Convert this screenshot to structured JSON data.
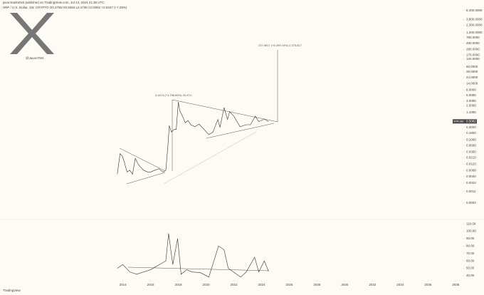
{
  "header": {
    "publisher": "javonmarks0x0 published on TradingView.com, Jul 13, 2024 21:38 UTC",
    "symbol": "XRP / U.S. Dollar, 1W, CRYPTO O0.4756 H0.5094 L0.4738 C0.5082 +0.0347 (+7.29%)"
  },
  "logo_handle": "@JavonTM1",
  "footer": "TradingView",
  "chart_data": [
    {
      "type": "line",
      "log_scale": true,
      "annotations": [
        "3.3474 (+3,798.85%) 33,474",
        "237.5817 (+6,394.15%) 2,375,817"
      ],
      "last_price": 0.5082,
      "x": [
        2013.6,
        2013.8,
        2013.95,
        2014.1,
        2014.3,
        2014.5,
        2014.7,
        2014.9,
        2015.1,
        2015.3,
        2015.5,
        2015.8,
        2016.0,
        2016.3,
        2016.6,
        2016.9,
        2017.1,
        2017.25,
        2017.35,
        2017.5,
        2017.7,
        2017.85,
        2018.0,
        2018.1,
        2018.3,
        2018.5,
        2018.7,
        2018.9,
        2019.2,
        2019.5,
        2019.8,
        2020.2,
        2020.5,
        2020.85,
        2021.0,
        2021.3,
        2021.55,
        2021.7,
        2022.0,
        2022.45,
        2022.9,
        2023.2,
        2023.55,
        2023.8,
        2024.2,
        2024.5
      ],
      "series": [
        {
          "name": "XRPUSD",
          "color": "#333333",
          "values": [
            0.005,
            0.03,
            0.025,
            0.015,
            0.006,
            0.007,
            0.005,
            0.02,
            0.012,
            0.009,
            0.007,
            0.006,
            0.006,
            0.007,
            0.008,
            0.006,
            0.007,
            0.06,
            0.35,
            0.2,
            0.25,
            0.25,
            2.8,
            1.3,
            0.8,
            0.45,
            0.55,
            0.38,
            0.32,
            0.4,
            0.27,
            0.16,
            0.2,
            0.6,
            0.3,
            1.7,
            0.6,
            1.2,
            0.8,
            0.32,
            0.38,
            0.38,
            0.8,
            0.5,
            0.62,
            0.5
          ]
        }
      ],
      "xlim": [
        2005.4,
        2038.5
      ],
      "ylim": [
        0.0001,
        10000
      ],
      "yticks": [
        {
          "value": 8400,
          "label": "8,400.0000"
        },
        {
          "value": 3800,
          "label": "3,800.0000"
        },
        {
          "value": 2300,
          "label": "2,300.0000"
        },
        {
          "value": 1200,
          "label": "1,200.0000"
        },
        {
          "value": 780,
          "label": "780.0000"
        },
        {
          "value": 480,
          "label": "480.0000"
        },
        {
          "value": 280,
          "label": "280.0000"
        },
        {
          "value": 170,
          "label": "170.0000"
        },
        {
          "value": 120,
          "label": "120.0000"
        },
        {
          "value": 60,
          "label": "60.0000"
        },
        {
          "value": 39,
          "label": "39.0000"
        },
        {
          "value": 24,
          "label": "24.0000"
        },
        {
          "value": 14,
          "label": "14.0000"
        },
        {
          "value": 8,
          "label": "8.0000"
        },
        {
          "value": 5,
          "label": "5.0000"
        },
        {
          "value": 3,
          "label": "3.0000"
        },
        {
          "value": 2,
          "label": "2.0000"
        },
        {
          "value": 1.1,
          "label": "1.1000"
        },
        {
          "value": 0.3,
          "label": "0.3000"
        },
        {
          "value": 0.18,
          "label": "0.1800"
        },
        {
          "value": 0.1,
          "label": "0.1000"
        },
        {
          "value": 0.06,
          "label": "0.0600"
        },
        {
          "value": 0.035,
          "label": "0.0350"
        },
        {
          "value": 0.021,
          "label": "0.0210"
        },
        {
          "value": 0.012,
          "label": "0.0120"
        },
        {
          "value": 0.0068,
          "label": "0.0068"
        },
        {
          "value": 0.004,
          "label": "0.0040"
        },
        {
          "value": 0.0023,
          "label": "0.0023"
        },
        {
          "value": 0.0011,
          "label": "0.0011"
        },
        {
          "value": 0.0004,
          "label": "0.0004"
        }
      ]
    },
    {
      "type": "line",
      "x": [
        2013.6,
        2014.0,
        2014.5,
        2015.0,
        2016.0,
        2017.1,
        2017.3,
        2017.6,
        2017.95,
        2018.2,
        2018.6,
        2019.0,
        2019.6,
        2020.2,
        2020.9,
        2021.3,
        2021.6,
        2022.5,
        2022.9,
        2023.5,
        2023.8,
        2024.2,
        2024.5
      ],
      "series": [
        {
          "name": "RSI",
          "color": "#333333",
          "values": [
            50,
            55,
            45,
            42,
            48,
            60,
            97,
            55,
            90,
            42,
            48,
            45,
            44,
            38,
            80,
            75,
            50,
            38,
            45,
            65,
            45,
            60,
            46
          ]
        }
      ],
      "xlim": [
        2005.4,
        2038.5
      ],
      "ylim": [
        36,
        114
      ],
      "xticks": [
        2014,
        2016,
        2018,
        2020,
        2022,
        2024,
        2026,
        2028,
        2030,
        2032,
        2034,
        2036,
        2038
      ],
      "yticks": [
        {
          "value": 110,
          "label": "110.00"
        },
        {
          "value": 100,
          "label": "100.00"
        },
        {
          "value": 90,
          "label": "90.00"
        },
        {
          "value": 80,
          "label": "80.00"
        },
        {
          "value": 70,
          "label": "70.00"
        },
        {
          "value": 60,
          "label": "60.00"
        },
        {
          "value": 50,
          "label": "50.00"
        },
        {
          "value": 40,
          "label": "40.00"
        }
      ]
    }
  ]
}
